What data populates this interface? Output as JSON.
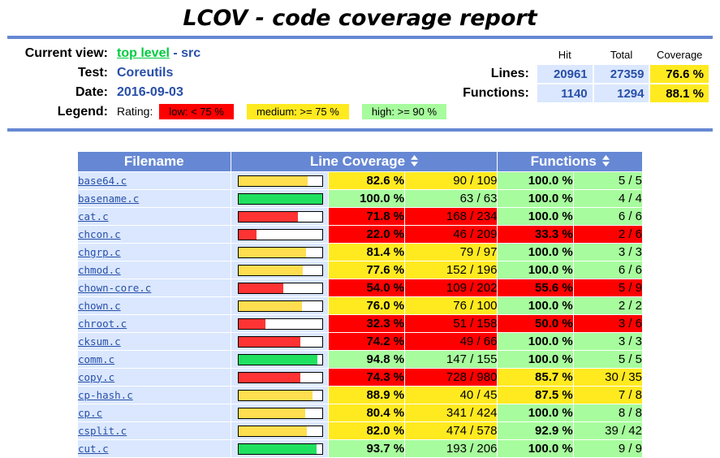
{
  "page": {
    "title": "LCOV - code coverage report"
  },
  "header": {
    "labels": {
      "current_view": "Current view:",
      "test": "Test:",
      "date": "Date:",
      "legend": "Legend:"
    },
    "current_view": {
      "link": "top level",
      "separator": "-",
      "current": "src"
    },
    "test_value": "Coreutils",
    "date_value": "2016-09-03",
    "rating_label": "Rating:",
    "legend_items": [
      {
        "label": "low: < 75 %",
        "rating": "low"
      },
      {
        "label": "medium: >= 75 %",
        "rating": "medium"
      },
      {
        "label": "high: >= 90 %",
        "rating": "high"
      }
    ],
    "stats": {
      "col_headers": [
        "Hit",
        "Total",
        "Coverage"
      ],
      "rows": [
        {
          "label": "Lines:",
          "hit": "20961",
          "total": "27359",
          "coverage": "76.6 %"
        },
        {
          "label": "Functions:",
          "hit": "1140",
          "total": "1294",
          "coverage": "88.1 %"
        }
      ]
    }
  },
  "table": {
    "headers": {
      "filename": "Filename",
      "line_coverage": "Line Coverage",
      "functions": "Functions"
    },
    "rows": [
      {
        "file": "base64.c",
        "line": {
          "pct": 82.6,
          "pct_text": "82.6 %",
          "ratio": "90 / 109",
          "rating": "medium"
        },
        "func": {
          "pct_text": "100.0 %",
          "ratio": "5 / 5",
          "rating": "high"
        }
      },
      {
        "file": "basename.c",
        "line": {
          "pct": 100.0,
          "pct_text": "100.0 %",
          "ratio": "63 / 63",
          "rating": "high"
        },
        "func": {
          "pct_text": "100.0 %",
          "ratio": "4 / 4",
          "rating": "high"
        }
      },
      {
        "file": "cat.c",
        "line": {
          "pct": 71.8,
          "pct_text": "71.8 %",
          "ratio": "168 / 234",
          "rating": "low"
        },
        "func": {
          "pct_text": "100.0 %",
          "ratio": "6 / 6",
          "rating": "high"
        }
      },
      {
        "file": "chcon.c",
        "line": {
          "pct": 22.0,
          "pct_text": "22.0 %",
          "ratio": "46 / 209",
          "rating": "low"
        },
        "func": {
          "pct_text": "33.3 %",
          "ratio": "2 / 6",
          "rating": "low"
        }
      },
      {
        "file": "chgrp.c",
        "line": {
          "pct": 81.4,
          "pct_text": "81.4 %",
          "ratio": "79 / 97",
          "rating": "medium"
        },
        "func": {
          "pct_text": "100.0 %",
          "ratio": "3 / 3",
          "rating": "high"
        }
      },
      {
        "file": "chmod.c",
        "line": {
          "pct": 77.6,
          "pct_text": "77.6 %",
          "ratio": "152 / 196",
          "rating": "medium"
        },
        "func": {
          "pct_text": "100.0 %",
          "ratio": "6 / 6",
          "rating": "high"
        }
      },
      {
        "file": "chown-core.c",
        "line": {
          "pct": 54.0,
          "pct_text": "54.0 %",
          "ratio": "109 / 202",
          "rating": "low"
        },
        "func": {
          "pct_text": "55.6 %",
          "ratio": "5 / 9",
          "rating": "low"
        }
      },
      {
        "file": "chown.c",
        "line": {
          "pct": 76.0,
          "pct_text": "76.0 %",
          "ratio": "76 / 100",
          "rating": "medium"
        },
        "func": {
          "pct_text": "100.0 %",
          "ratio": "2 / 2",
          "rating": "high"
        }
      },
      {
        "file": "chroot.c",
        "line": {
          "pct": 32.3,
          "pct_text": "32.3 %",
          "ratio": "51 / 158",
          "rating": "low"
        },
        "func": {
          "pct_text": "50.0 %",
          "ratio": "3 / 6",
          "rating": "low"
        }
      },
      {
        "file": "cksum.c",
        "line": {
          "pct": 74.2,
          "pct_text": "74.2 %",
          "ratio": "49 / 66",
          "rating": "low"
        },
        "func": {
          "pct_text": "100.0 %",
          "ratio": "3 / 3",
          "rating": "high"
        }
      },
      {
        "file": "comm.c",
        "line": {
          "pct": 94.8,
          "pct_text": "94.8 %",
          "ratio": "147 / 155",
          "rating": "high"
        },
        "func": {
          "pct_text": "100.0 %",
          "ratio": "5 / 5",
          "rating": "high"
        }
      },
      {
        "file": "copy.c",
        "line": {
          "pct": 74.3,
          "pct_text": "74.3 %",
          "ratio": "728 / 980",
          "rating": "low"
        },
        "func": {
          "pct_text": "85.7 %",
          "ratio": "30 / 35",
          "rating": "medium"
        }
      },
      {
        "file": "cp-hash.c",
        "line": {
          "pct": 88.9,
          "pct_text": "88.9 %",
          "ratio": "40 / 45",
          "rating": "medium"
        },
        "func": {
          "pct_text": "87.5 %",
          "ratio": "7 / 8",
          "rating": "medium"
        }
      },
      {
        "file": "cp.c",
        "line": {
          "pct": 80.4,
          "pct_text": "80.4 %",
          "ratio": "341 / 424",
          "rating": "medium"
        },
        "func": {
          "pct_text": "100.0 %",
          "ratio": "8 / 8",
          "rating": "high"
        }
      },
      {
        "file": "csplit.c",
        "line": {
          "pct": 82.0,
          "pct_text": "82.0 %",
          "ratio": "474 / 578",
          "rating": "medium"
        },
        "func": {
          "pct_text": "92.9 %",
          "ratio": "39 / 42",
          "rating": "high"
        }
      },
      {
        "file": "cut.c",
        "line": {
          "pct": 93.7,
          "pct_text": "93.7 %",
          "ratio": "193 / 206",
          "rating": "high"
        },
        "func": {
          "pct_text": "100.0 %",
          "ratio": "9 / 9",
          "rating": "high"
        }
      }
    ]
  },
  "icons": {
    "sort": "sort-updown-icon"
  },
  "colors": {
    "accent_blue": "#6688D4",
    "row_bg_blue": "#DAE7FE",
    "value_blue": "#284FA8",
    "visited_link_green": "#00CB40",
    "cell_low": "#FF0000",
    "cell_medium": "#FFEA20",
    "cell_high": "#A7FC9D",
    "bar_low": "#FF3333",
    "bar_medium": "#FFDE4F",
    "bar_high": "#20E060"
  }
}
